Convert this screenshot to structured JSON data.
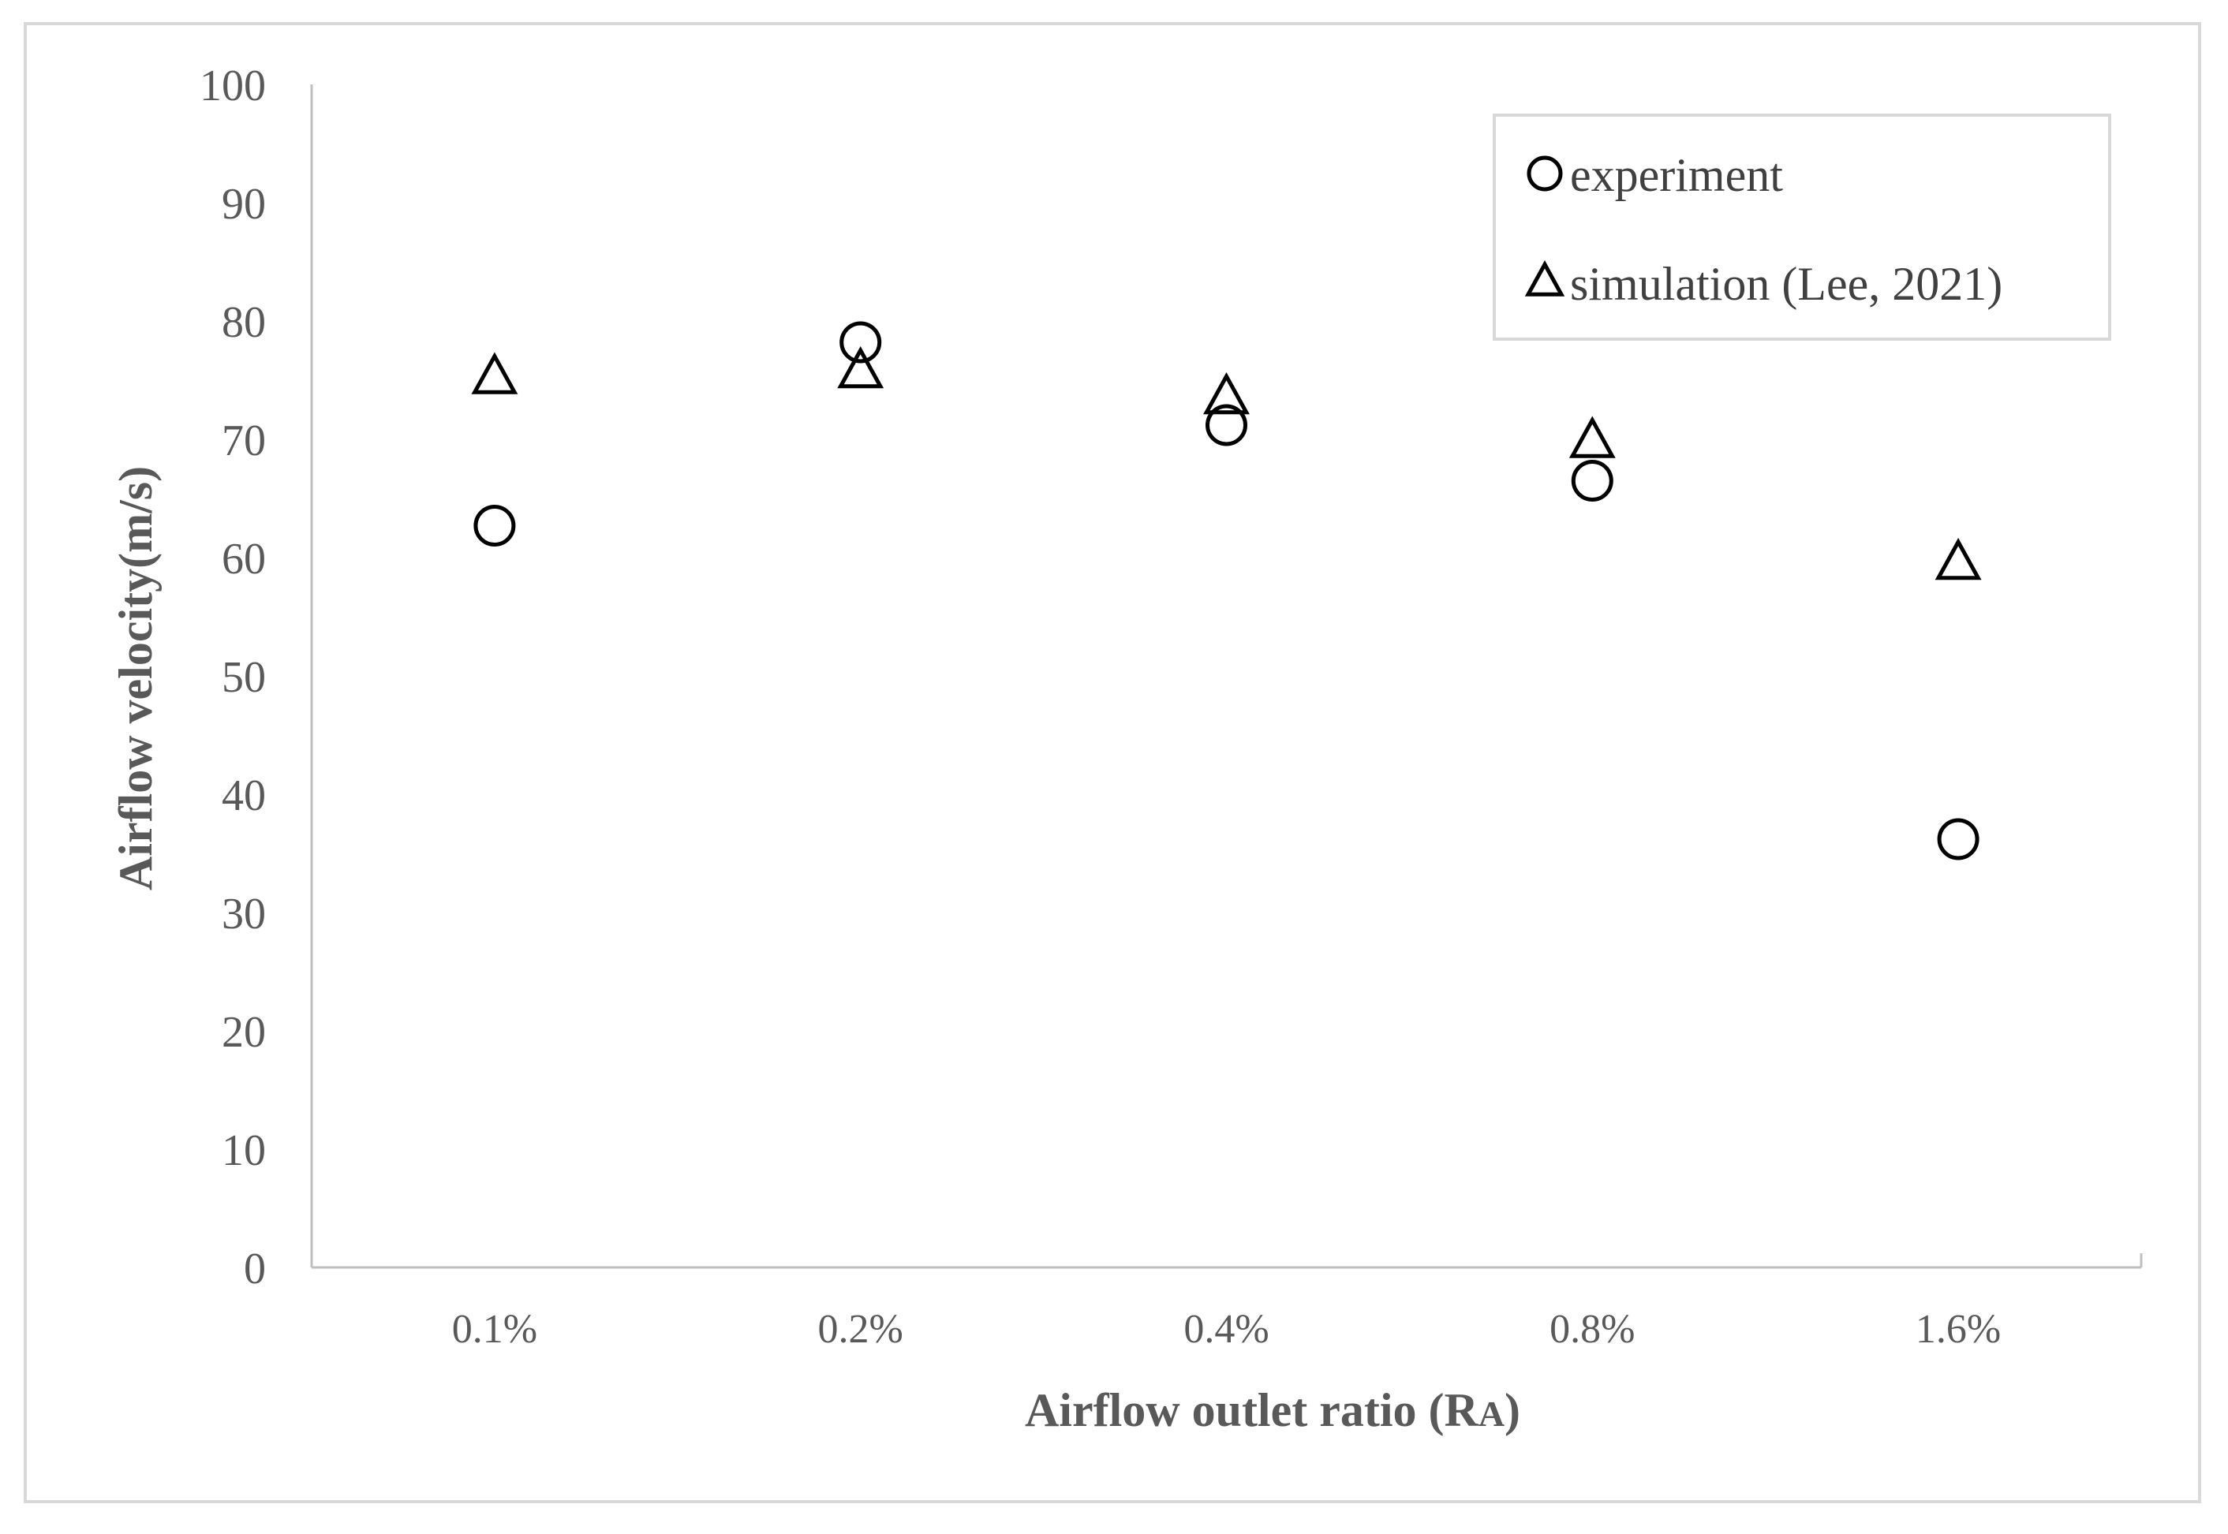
{
  "chart_data": {
    "type": "scatter",
    "categories": [
      "0.1%",
      "0.2%",
      "0.4%",
      "0.8%",
      "1.6%"
    ],
    "series": [
      {
        "name": "experiment",
        "marker": "circle",
        "values": [
          62.7,
          78.2,
          71.2,
          66.5,
          36.2
        ]
      },
      {
        "name": "simulation (Lee, 2021)",
        "marker": "triangle",
        "values": [
          75.2,
          75.7,
          73.5,
          69.8,
          59.5
        ]
      }
    ],
    "title": "",
    "xlabel": "Airflow  outlet ratio (R",
    "xlabel_subscript": "A",
    "xlabel_suffix": ")",
    "ylabel": "Airflow  velocity(m/s)",
    "ylim": [
      0,
      100
    ],
    "yticks": [
      0,
      10,
      20,
      30,
      40,
      50,
      60,
      70,
      80,
      90,
      100
    ],
    "grid": false,
    "legend_position": "top-right",
    "colors": {
      "marker": "#000000",
      "axis": "#bfbfbf",
      "frame": "#d9d9d9",
      "tick_text": "#595959",
      "legend_border": "#d9d9d9"
    }
  }
}
